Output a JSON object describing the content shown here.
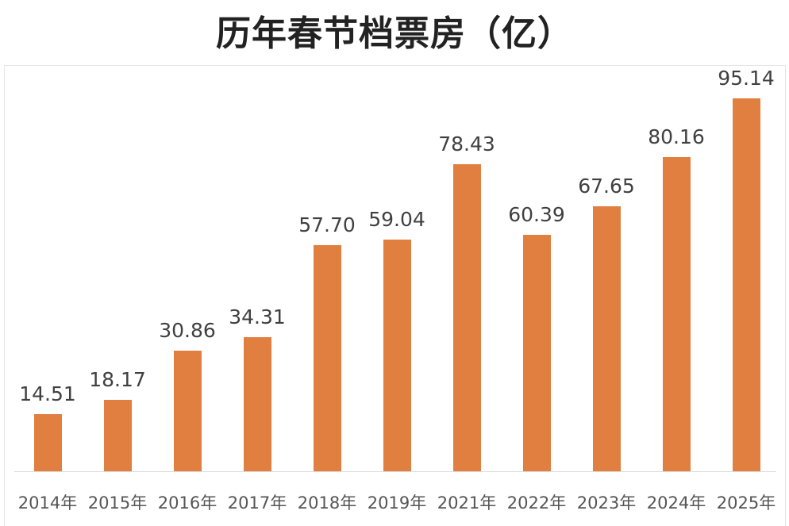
{
  "title": "历年春节档票房（亿）",
  "colors": {
    "bar": "#e07f3f",
    "text": "#404040"
  },
  "chart_data": {
    "type": "bar",
    "title": "历年春节档票房（亿）",
    "xlabel": "",
    "ylabel": "",
    "categories": [
      "2014年",
      "2015年",
      "2016年",
      "2017年",
      "2018年",
      "2019年",
      "2021年",
      "2022年",
      "2023年",
      "2024年",
      "2025年"
    ],
    "values": [
      14.51,
      18.17,
      30.86,
      34.31,
      57.7,
      59.04,
      78.43,
      60.39,
      67.65,
      80.16,
      95.14
    ],
    "labels": [
      "14.51",
      "18.17",
      "30.86",
      "34.31",
      "57.70",
      "59.04",
      "78.43",
      "60.39",
      "67.65",
      "80.16",
      "95.14"
    ],
    "ylim": [
      0,
      100
    ],
    "grid": false,
    "legend": null
  }
}
